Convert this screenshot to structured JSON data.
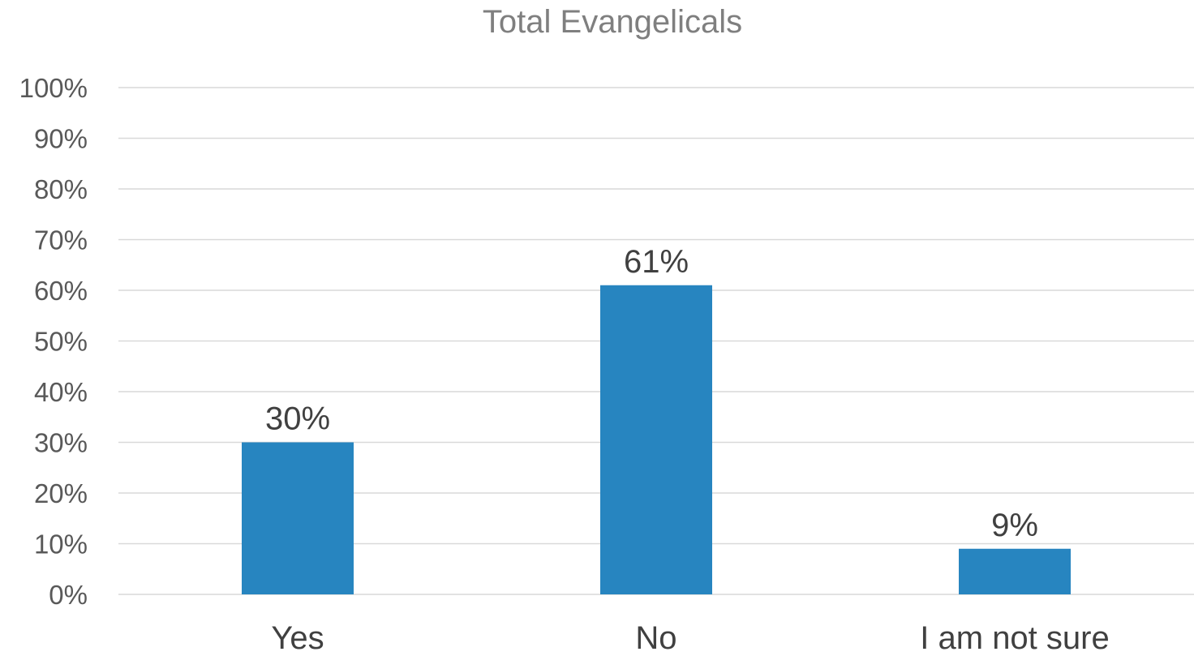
{
  "chart_data": {
    "type": "bar",
    "title": "Total Evangelicals",
    "categories": [
      "Yes",
      "No",
      "I am not sure"
    ],
    "values": [
      30,
      61,
      9
    ],
    "data_labels": [
      "30%",
      "61%",
      "9%"
    ],
    "ylim": [
      0,
      100
    ],
    "yticks": [
      "0%",
      "10%",
      "20%",
      "30%",
      "40%",
      "50%",
      "60%",
      "70%",
      "80%",
      "90%",
      "100%"
    ],
    "xlabel": "",
    "ylabel": "",
    "grid": true,
    "legend": "none",
    "colors": {
      "bar": "#2785C0",
      "grid": "#D9D9D9"
    }
  }
}
